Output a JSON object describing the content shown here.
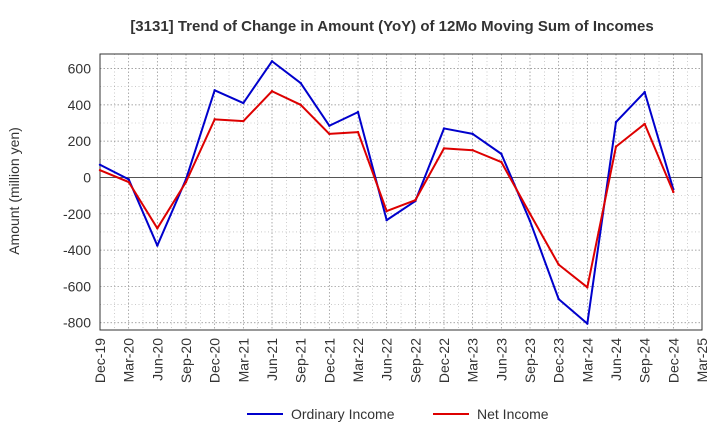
{
  "chart_data": {
    "type": "line",
    "title": "[3131]  Trend of Change in Amount (YoY) of 12Mo Moving Sum of Incomes",
    "xlabel": "",
    "ylabel": "Amount (million yen)",
    "ylim": [
      -840,
      680
    ],
    "yticks": [
      -800,
      -600,
      -400,
      -200,
      0,
      200,
      400,
      600
    ],
    "grid": true,
    "legend_position": "bottom",
    "categories": [
      "Dec-19",
      "Mar-20",
      "Jun-20",
      "Sep-20",
      "Dec-20",
      "Mar-21",
      "Jun-21",
      "Sep-21",
      "Dec-21",
      "Mar-22",
      "Jun-22",
      "Sep-22",
      "Dec-22",
      "Mar-23",
      "Jun-23",
      "Sep-23",
      "Dec-23",
      "Mar-24",
      "Jun-24",
      "Sep-24",
      "Dec-24",
      "Mar-25"
    ],
    "series": [
      {
        "name": "Ordinary Income",
        "color": "#0000cc",
        "values": [
          70,
          -10,
          -375,
          -10,
          480,
          410,
          640,
          520,
          285,
          360,
          -235,
          -130,
          270,
          240,
          130,
          -240,
          -670,
          -805,
          305,
          470,
          -65,
          null
        ]
      },
      {
        "name": "Net Income",
        "color": "#dd0000",
        "values": [
          40,
          -25,
          -280,
          -25,
          320,
          310,
          475,
          400,
          240,
          250,
          -185,
          -125,
          160,
          150,
          85,
          -200,
          -480,
          -605,
          170,
          295,
          -80,
          null
        ]
      }
    ]
  }
}
